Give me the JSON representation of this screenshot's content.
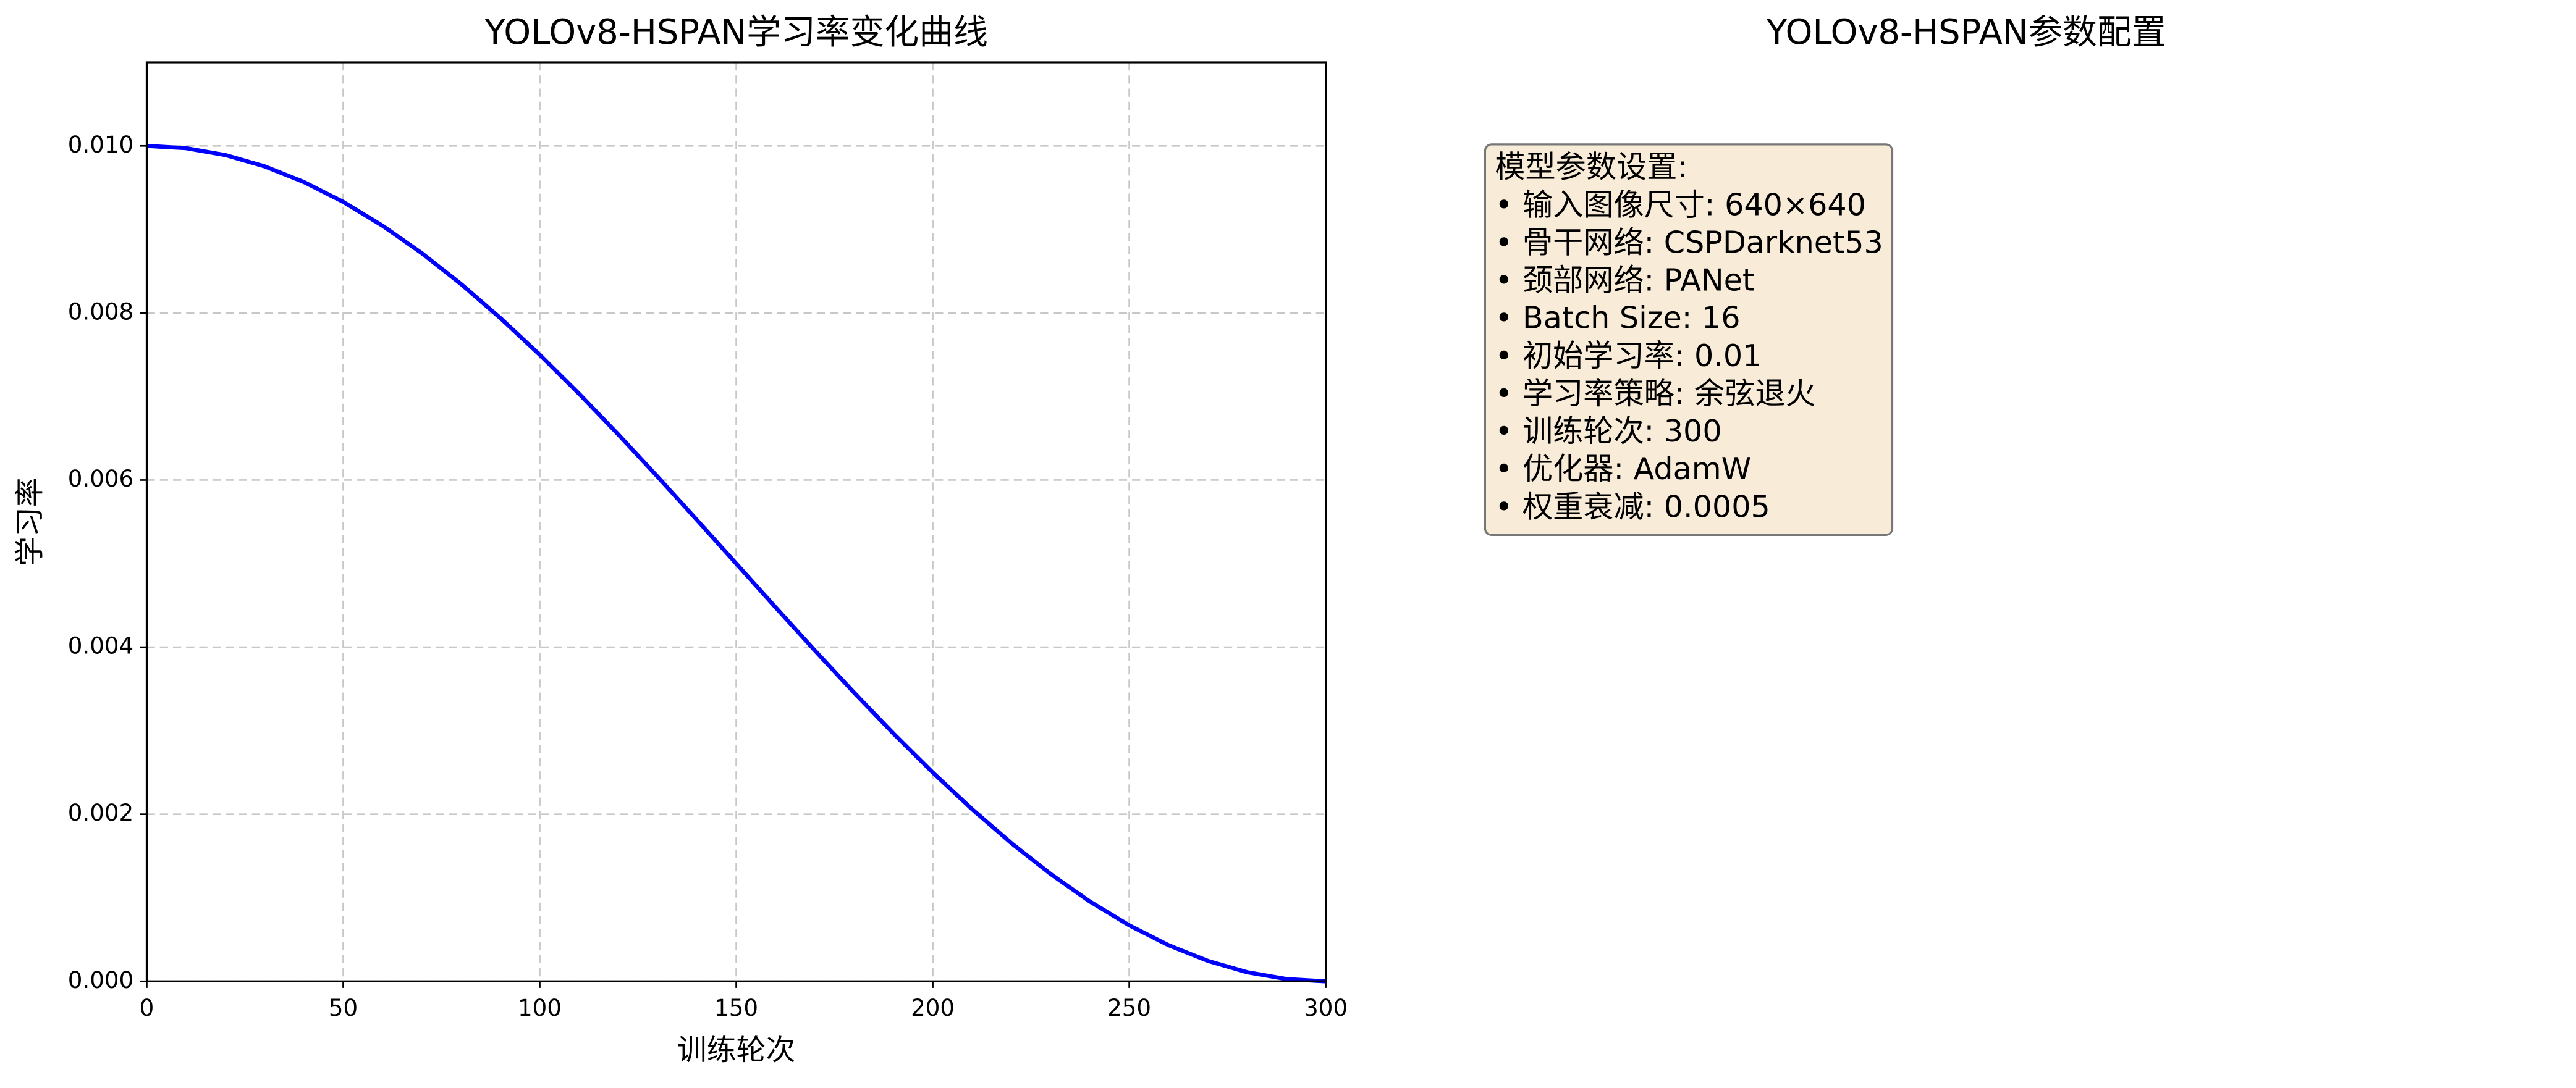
{
  "chart_data": {
    "type": "line",
    "title": "YOLOv8-HSPAN学习率变化曲线",
    "x_label": "训练轮次",
    "y_label": "学习率",
    "x": [
      0,
      10,
      20,
      30,
      40,
      50,
      60,
      70,
      80,
      90,
      100,
      110,
      120,
      130,
      140,
      150,
      160,
      170,
      180,
      190,
      200,
      210,
      220,
      230,
      240,
      250,
      260,
      270,
      280,
      290,
      300
    ],
    "series": [
      {
        "name": "学习率",
        "color": "#0000ff",
        "values": [
          0.01,
          0.0099726,
          0.0098907,
          0.0097553,
          0.0095677,
          0.0093301,
          0.0090451,
          0.0087157,
          0.0083457,
          0.0079389,
          0.0075,
          0.0070337,
          0.0065451,
          0.0060396,
          0.0055226,
          0.005,
          0.0044774,
          0.0039604,
          0.0034549,
          0.0029663,
          0.0025,
          0.0020611,
          0.0016543,
          0.0012843,
          0.0009549,
          0.0006699,
          0.0004323,
          0.0002447,
          0.0001093,
          2.74e-05,
          0
        ]
      }
    ],
    "xlim": [
      0,
      300
    ],
    "xticks": [
      0,
      50,
      100,
      150,
      200,
      250,
      300
    ],
    "ylim": [
      0,
      0.011
    ],
    "yticks": [
      {
        "value": 0,
        "label": "0.000"
      },
      {
        "value": 0.002,
        "label": "0.002"
      },
      {
        "value": 0.004,
        "label": "0.004"
      },
      {
        "value": 0.006,
        "label": "0.006"
      },
      {
        "value": 0.008,
        "label": "0.008"
      },
      {
        "value": 0.01,
        "label": "0.010"
      }
    ],
    "grid": true
  },
  "panel": {
    "title": "YOLOv8-HSPAN参数配置",
    "lines": [
      "模型参数设置:",
      "• 输入图像尺寸: 640×640",
      "• 骨干网络: CSPDarknet53",
      "• 颈部网络: PANet",
      "• Batch Size: 16",
      "• 初始学习率: 0.01",
      "• 学习率策略: 余弦退火",
      "• 训练轮次: 300",
      "• 优化器: AdamW",
      "• 权重衰减: 0.0005"
    ]
  }
}
